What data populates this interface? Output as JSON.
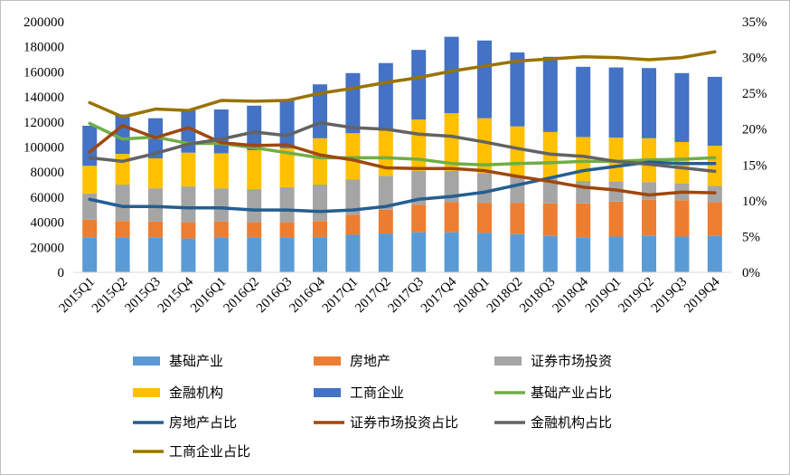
{
  "chart_data": {
    "type": "bar",
    "stacked": true,
    "categories": [
      "2015Q1",
      "2015Q2",
      "2015Q3",
      "2015Q4",
      "2016Q1",
      "2016Q2",
      "2016Q3",
      "2016Q4",
      "2017Q1",
      "2017Q2",
      "2017Q3",
      "2017Q4",
      "2018Q1",
      "2018Q2",
      "2018Q3",
      "2018Q4",
      "2019Q1",
      "2019Q2",
      "2019Q3",
      "2019Q4"
    ],
    "ylim": [
      0,
      200000
    ],
    "y_ticks": [
      "0",
      "20000",
      "40000",
      "60000",
      "80000",
      "100000",
      "120000",
      "140000",
      "160000",
      "180000",
      "200000"
    ],
    "y2lim": [
      0,
      0.35
    ],
    "y2_ticks": [
      "0%",
      "5%",
      "10%",
      "15%",
      "20%",
      "25%",
      "30%",
      "35%"
    ],
    "grid": false,
    "legend_position": "bottom",
    "bar_series": [
      {
        "name": "基础产业",
        "color": "#5b9bd5",
        "values": [
          28000,
          27500,
          28000,
          27000,
          27500,
          27500,
          27500,
          28000,
          30000,
          31000,
          32000,
          32000,
          31500,
          30500,
          29000,
          28000,
          28500,
          29000,
          28500,
          29000
        ]
      },
      {
        "name": "房地产",
        "color": "#ed7d31",
        "values": [
          14000,
          13500,
          12500,
          13000,
          13000,
          12500,
          12500,
          13000,
          16000,
          19000,
          22000,
          24000,
          24000,
          25000,
          26000,
          27000,
          28000,
          29000,
          29000,
          27000
        ]
      },
      {
        "name": "证券市场投资",
        "color": "#a5a5a5",
        "values": [
          21000,
          29000,
          26500,
          28500,
          26500,
          26500,
          28000,
          29000,
          28000,
          27000,
          27000,
          25000,
          23500,
          21000,
          20000,
          18000,
          16000,
          14000,
          13500,
          13000
        ]
      },
      {
        "name": "金融机构",
        "color": "#ffc000",
        "values": [
          22000,
          24500,
          24000,
          27000,
          28000,
          31000,
          31000,
          37000,
          37000,
          36000,
          41000,
          46000,
          44000,
          40000,
          37000,
          35000,
          35000,
          35000,
          33000,
          32000
        ]
      },
      {
        "name": "工商企业",
        "color": "#4472c4",
        "values": [
          32000,
          31500,
          32000,
          34000,
          35000,
          35500,
          39000,
          43000,
          48000,
          54000,
          55500,
          61000,
          62000,
          59000,
          60000,
          56000,
          56000,
          56000,
          55000,
          55000
        ]
      }
    ],
    "line_series": [
      {
        "name": "基础产业占比",
        "color": "#70ad47",
        "values": [
          0.208,
          0.186,
          0.189,
          0.18,
          0.18,
          0.174,
          0.167,
          0.16,
          0.16,
          0.16,
          0.158,
          0.152,
          0.15,
          0.152,
          0.153,
          0.155,
          0.155,
          0.157,
          0.158,
          0.16
        ]
      },
      {
        "name": "房地产占比",
        "color": "#255e91",
        "values": [
          0.102,
          0.092,
          0.092,
          0.09,
          0.09,
          0.087,
          0.087,
          0.085,
          0.087,
          0.092,
          0.102,
          0.106,
          0.112,
          0.122,
          0.132,
          0.142,
          0.148,
          0.154,
          0.152,
          0.152
        ]
      },
      {
        "name": "证券市场投资占比",
        "color": "#9e480e",
        "values": [
          0.168,
          0.205,
          0.188,
          0.202,
          0.181,
          0.177,
          0.178,
          0.164,
          0.157,
          0.146,
          0.145,
          0.145,
          0.142,
          0.134,
          0.127,
          0.119,
          0.115,
          0.108,
          0.112,
          0.111
        ]
      },
      {
        "name": "金融机构占比",
        "color": "#636363",
        "values": [
          0.16,
          0.155,
          0.166,
          0.179,
          0.186,
          0.196,
          0.191,
          0.209,
          0.202,
          0.2,
          0.193,
          0.19,
          0.182,
          0.173,
          0.165,
          0.162,
          0.155,
          0.151,
          0.146,
          0.141
        ]
      },
      {
        "name": "工商企业占比",
        "color": "#997300",
        "values": [
          0.237,
          0.217,
          0.228,
          0.226,
          0.24,
          0.239,
          0.24,
          0.25,
          0.257,
          0.265,
          0.272,
          0.281,
          0.288,
          0.295,
          0.298,
          0.301,
          0.3,
          0.297,
          0.3,
          0.308
        ]
      }
    ]
  }
}
